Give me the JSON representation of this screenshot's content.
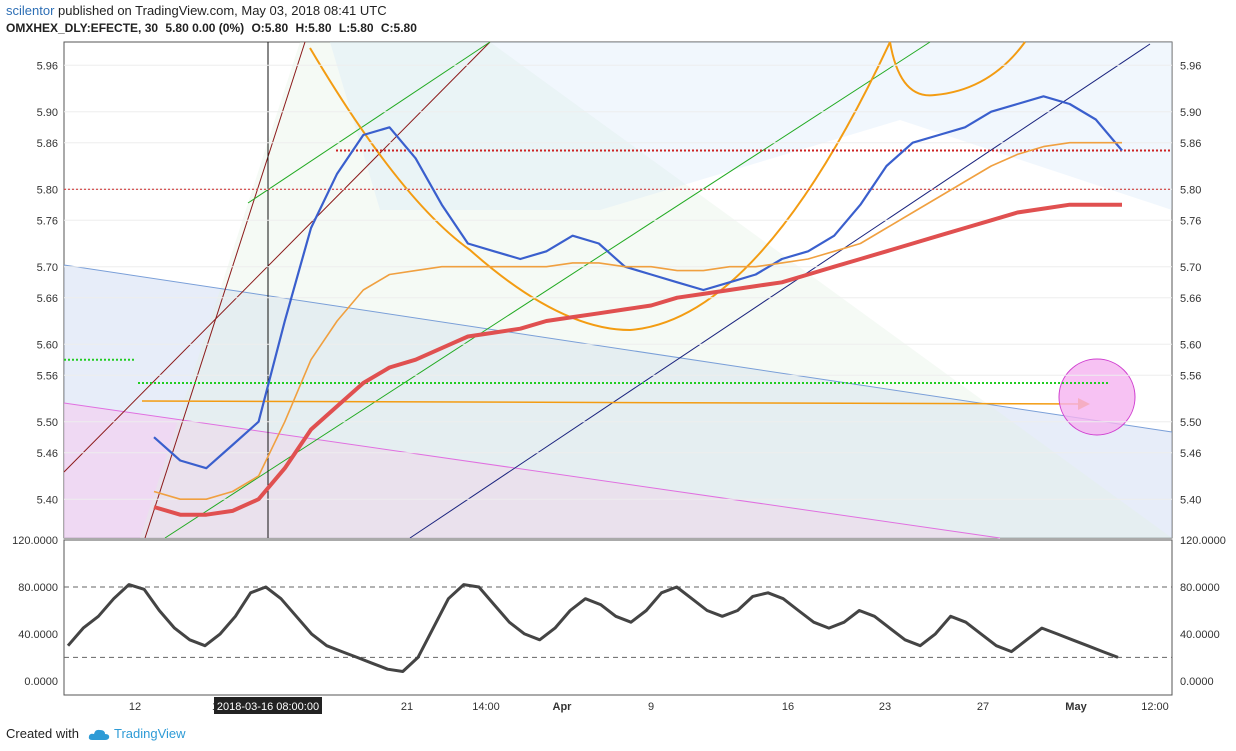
{
  "header": {
    "username": "scilentor",
    "published_text": "published on TradingView.com, May 03, 2018 08:41 UTC",
    "symbol": "OMXHEX_DLY:EFECTE, 30",
    "ohlc_summary": "5.80 0.00 (0%)",
    "open": "O:5.80",
    "high": "H:5.80",
    "low": "L:5.80",
    "close": "C:5.80"
  },
  "footer": {
    "created_with": "Created with",
    "brand": "TradingView"
  },
  "colors": {
    "ma_blue": "#3a5fcd",
    "ma_red": "#e05050",
    "ma_orange": "#f0a040",
    "arc_orange": "#f39c12",
    "stoch_dark": "#444444",
    "green_dots": "#22cc22",
    "red_dots": "#cc2222"
  },
  "chart_data": [
    {
      "type": "line",
      "title": "",
      "y_ticks": [
        "5.96",
        "5.90",
        "5.86",
        "5.80",
        "5.76",
        "5.70",
        "5.66",
        "5.60",
        "5.56",
        "5.50",
        "5.46",
        "5.40"
      ],
      "x_ticks": [
        "12",
        "1",
        "2018-03-16 08:00:00",
        "21",
        "14:00",
        "Apr",
        "9",
        "16",
        "23",
        "27",
        "May",
        "12:00"
      ],
      "ylim": [
        5.35,
        5.99
      ],
      "series": [
        {
          "values": [
            5.48,
            5.45,
            5.44,
            5.47,
            5.5,
            5.63,
            5.75,
            5.82,
            5.87,
            5.88,
            5.84,
            5.78,
            5.73,
            5.72,
            5.71,
            5.72,
            5.74,
            5.73,
            5.7,
            5.69,
            5.68,
            5.67,
            5.68,
            5.69,
            5.71,
            5.72,
            5.74,
            5.78,
            5.83,
            5.86,
            5.87,
            5.88,
            5.9,
            5.91,
            5.92,
            5.91,
            5.89,
            5.85
          ]
        },
        {
          "values": [
            5.39,
            5.38,
            5.38,
            5.385,
            5.4,
            5.44,
            5.49,
            5.52,
            5.55,
            5.57,
            5.58,
            5.595,
            5.61,
            5.615,
            5.62,
            5.63,
            5.635,
            5.64,
            5.645,
            5.65,
            5.66,
            5.665,
            5.67,
            5.675,
            5.68,
            5.69,
            5.7,
            5.71,
            5.72,
            5.73,
            5.74,
            5.75,
            5.76,
            5.77,
            5.775,
            5.78,
            5.78,
            5.78
          ]
        },
        {
          "values": [
            5.41,
            5.4,
            5.4,
            5.41,
            5.43,
            5.5,
            5.58,
            5.63,
            5.67,
            5.69,
            5.695,
            5.7,
            5.7,
            5.7,
            5.7,
            5.7,
            5.705,
            5.705,
            5.7,
            5.7,
            5.695,
            5.695,
            5.7,
            5.7,
            5.705,
            5.71,
            5.72,
            5.73,
            5.75,
            5.77,
            5.79,
            5.81,
            5.83,
            5.845,
            5.855,
            5.86,
            5.86,
            5.86
          ]
        }
      ],
      "price_levels": [
        5.85,
        5.8,
        5.55,
        5.58
      ],
      "target_level": 5.53
    },
    {
      "type": "line",
      "title": "",
      "y_ticks": [
        "120.0000",
        "80.0000",
        "40.0000",
        "0.0000"
      ],
      "ylim": [
        -12,
        120
      ],
      "reference_levels": [
        80,
        20
      ],
      "series": [
        {
          "values": [
            30,
            45,
            55,
            70,
            82,
            78,
            60,
            45,
            35,
            30,
            40,
            55,
            75,
            80,
            70,
            55,
            40,
            30,
            25,
            20,
            15,
            10,
            8,
            20,
            45,
            70,
            82,
            80,
            65,
            50,
            40,
            35,
            45,
            60,
            70,
            65,
            55,
            50,
            60,
            75,
            80,
            70,
            60,
            55,
            60,
            72,
            75,
            70,
            60,
            50,
            45,
            50,
            60,
            55,
            45,
            35,
            30,
            40,
            55,
            50,
            40,
            30,
            25,
            35,
            45,
            40,
            35,
            30,
            25,
            20
          ]
        }
      ]
    }
  ]
}
